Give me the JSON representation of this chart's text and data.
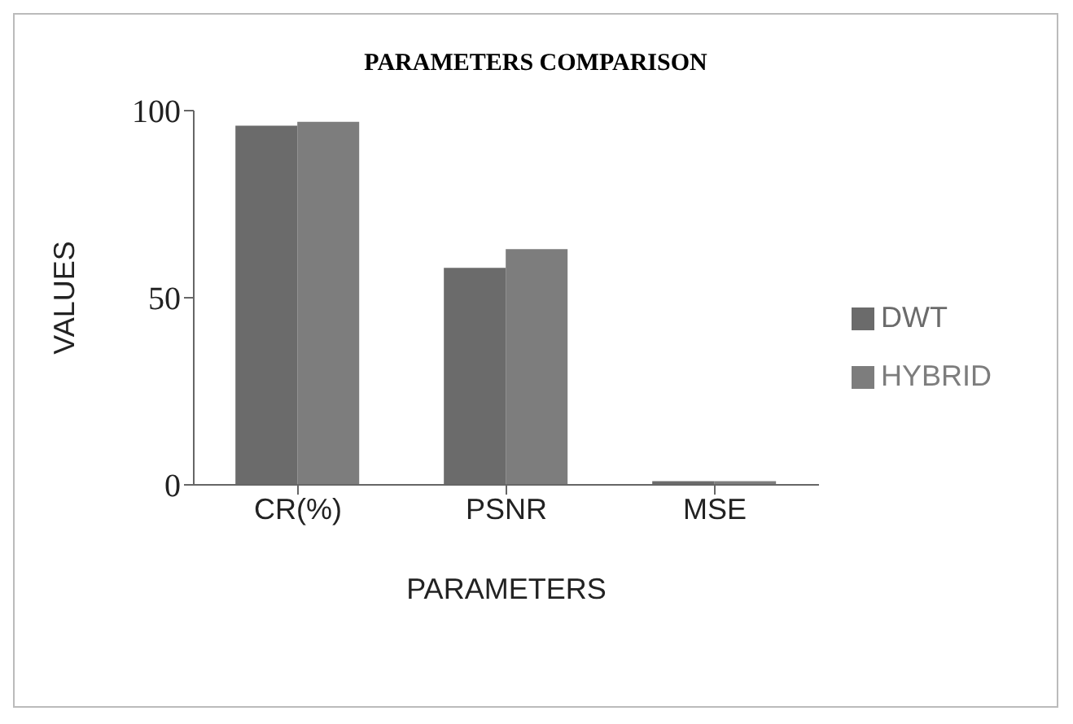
{
  "chart_data": {
    "type": "bar",
    "title": "PARAMETERS COMPARISON",
    "xlabel": "PARAMETERS",
    "ylabel": "VALUES",
    "categories": [
      "CR(%)",
      "PSNR",
      "MSE"
    ],
    "series": [
      {
        "name": "DWT",
        "color": "#6b6b6b",
        "values": [
          96,
          58,
          1
        ]
      },
      {
        "name": "HYBRID",
        "color": "#7d7d7d",
        "values": [
          97,
          63,
          1
        ]
      }
    ],
    "ylim": [
      0,
      100
    ],
    "yticks": [
      0,
      50,
      100
    ],
    "grid": false,
    "legend": "right"
  }
}
